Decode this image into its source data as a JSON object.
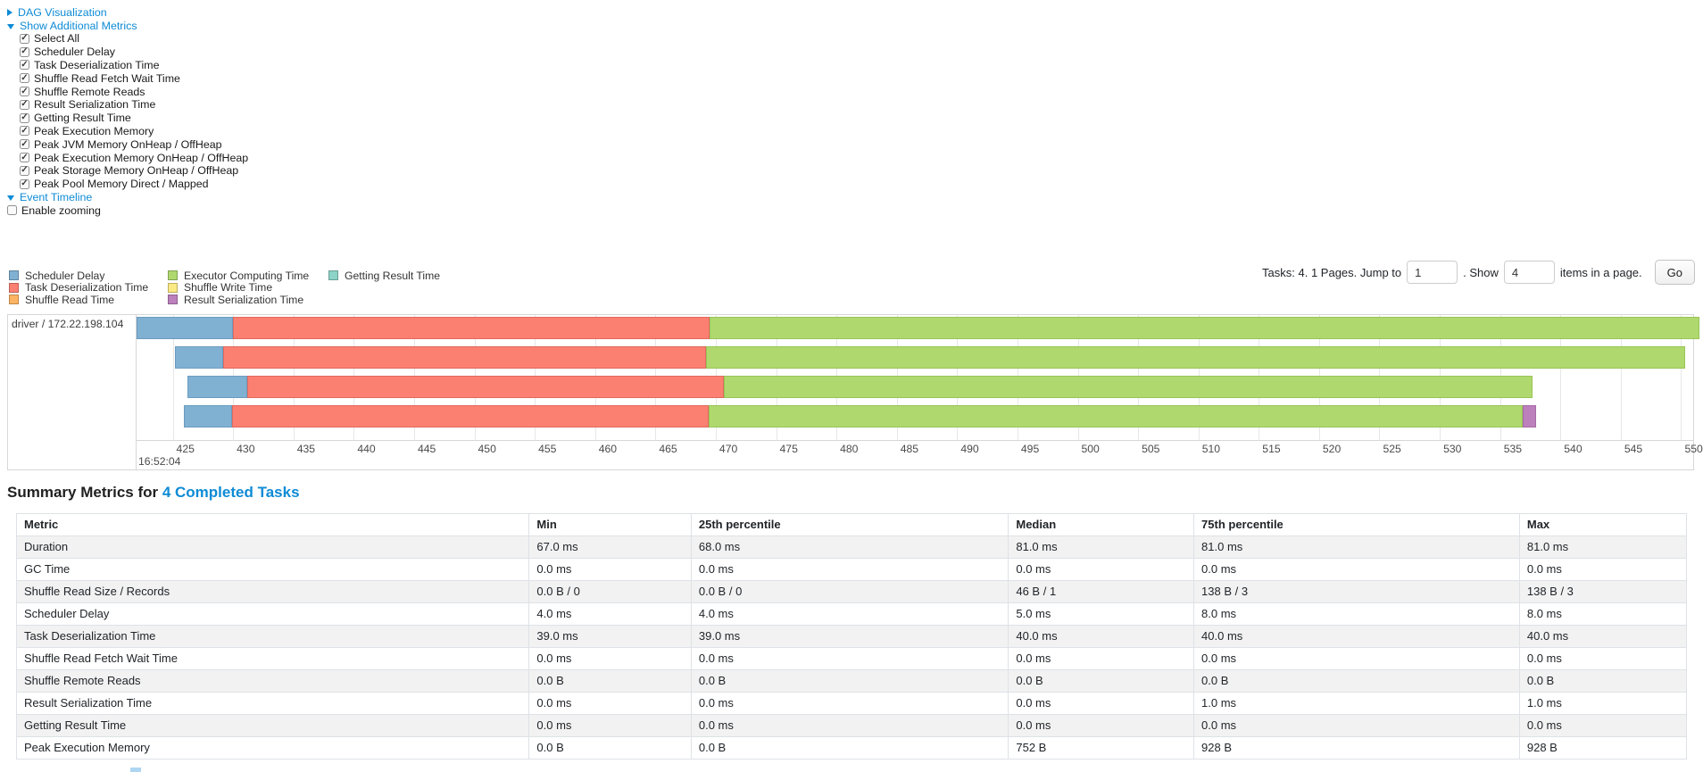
{
  "controls": {
    "dag_link": "DAG Visualization",
    "metrics_link": "Show Additional Metrics",
    "metric_checkboxes": [
      {
        "label": "Select All",
        "checked": true
      },
      {
        "label": "Scheduler Delay",
        "checked": true
      },
      {
        "label": "Task Deserialization Time",
        "checked": true
      },
      {
        "label": "Shuffle Read Fetch Wait Time",
        "checked": true
      },
      {
        "label": "Shuffle Remote Reads",
        "checked": true
      },
      {
        "label": "Result Serialization Time",
        "checked": true
      },
      {
        "label": "Getting Result Time",
        "checked": true
      },
      {
        "label": "Peak Execution Memory",
        "checked": true
      },
      {
        "label": "Peak JVM Memory OnHeap / OffHeap",
        "checked": true
      },
      {
        "label": "Peak Execution Memory OnHeap / OffHeap",
        "checked": true
      },
      {
        "label": "Peak Storage Memory OnHeap / OffHeap",
        "checked": true
      },
      {
        "label": "Peak Pool Memory Direct / Mapped",
        "checked": true
      }
    ],
    "event_timeline_link": "Event Timeline",
    "enable_zooming": {
      "label": "Enable zooming",
      "checked": false
    }
  },
  "legend": {
    "columns": [
      [
        {
          "label": "Scheduler Delay",
          "type": "scheduler_delay"
        },
        {
          "label": "Task Deserialization Time",
          "type": "deserialization"
        },
        {
          "label": "Shuffle Read Time",
          "type": "shuffle_read"
        }
      ],
      [
        {
          "label": "Executor Computing Time",
          "type": "computing"
        },
        {
          "label": "Shuffle Write Time",
          "type": "shuffle_write"
        },
        {
          "label": "Result Serialization Time",
          "type": "serialization"
        }
      ],
      [
        {
          "label": "Getting Result Time",
          "type": "getting_result"
        }
      ]
    ]
  },
  "pagination": {
    "prefix": "Tasks: 4. 1 Pages. Jump to",
    "jump_value": "1",
    "mid": ". Show",
    "show_value": "4",
    "suffix": "items in a page.",
    "go_label": "Go"
  },
  "timeline": {
    "group_label": "driver / 172.22.198.104",
    "axis": {
      "t0": 422,
      "t1": 551,
      "tick_start": 425,
      "tick_end": 550,
      "tick_step": 5,
      "major_label": "16:52:04"
    },
    "colors": {
      "scheduler_delay": {
        "fill": "#80B1D3",
        "border": "#6b9cc0"
      },
      "deserialization": {
        "fill": "#FB8072",
        "border": "#e06a5e"
      },
      "shuffle_read": {
        "fill": "#FDB462",
        "border": "#e09c4c"
      },
      "computing": {
        "fill": "#AFD96E",
        "border": "#98c455"
      },
      "shuffle_write": {
        "fill": "#FBE983",
        "border": "#ddcc55"
      },
      "serialization": {
        "fill": "#BC80BD",
        "border": "#a76aa8"
      },
      "getting_result": {
        "fill": "#8DD3C7",
        "border": "#76bdb1"
      }
    },
    "tasks": [
      {
        "segments": [
          {
            "type": "scheduler_delay",
            "start": 422.0,
            "end": 430.0
          },
          {
            "type": "deserialization",
            "start": 430.0,
            "end": 469.5
          },
          {
            "type": "computing",
            "start": 469.5,
            "end": 551.5
          }
        ]
      },
      {
        "segments": [
          {
            "type": "scheduler_delay",
            "start": 425.2,
            "end": 429.2
          },
          {
            "type": "deserialization",
            "start": 429.2,
            "end": 469.2
          },
          {
            "type": "computing",
            "start": 469.2,
            "end": 550.3
          }
        ]
      },
      {
        "segments": [
          {
            "type": "scheduler_delay",
            "start": 426.2,
            "end": 431.2
          },
          {
            "type": "deserialization",
            "start": 431.2,
            "end": 470.7
          },
          {
            "type": "computing",
            "start": 470.7,
            "end": 537.7
          }
        ]
      },
      {
        "segments": [
          {
            "type": "scheduler_delay",
            "start": 425.9,
            "end": 429.9
          },
          {
            "type": "deserialization",
            "start": 429.9,
            "end": 469.4
          },
          {
            "type": "computing",
            "start": 469.4,
            "end": 536.9
          },
          {
            "type": "serialization",
            "start": 536.9,
            "end": 538.0
          }
        ]
      }
    ]
  },
  "summary": {
    "title_prefix": "Summary Metrics for",
    "title_link": "4 Completed Tasks",
    "table": {
      "headers": [
        "Metric",
        "Min",
        "25th percentile",
        "Median",
        "75th percentile",
        "Max"
      ],
      "rows": [
        {
          "metric": "Duration",
          "values": [
            "67.0 ms",
            "68.0 ms",
            "81.0 ms",
            "81.0 ms",
            "81.0 ms"
          ]
        },
        {
          "metric": "GC Time",
          "values": [
            "0.0 ms",
            "0.0 ms",
            "0.0 ms",
            "0.0 ms",
            "0.0 ms"
          ]
        },
        {
          "metric": "Shuffle Read Size / Records",
          "values": [
            "0.0 B / 0",
            "0.0 B / 0",
            "46 B / 1",
            "138 B / 3",
            "138 B / 3"
          ]
        },
        {
          "metric": "Scheduler Delay",
          "values": [
            "4.0 ms",
            "4.0 ms",
            "5.0 ms",
            "8.0 ms",
            "8.0 ms"
          ]
        },
        {
          "metric": "Task Deserialization Time",
          "values": [
            "39.0 ms",
            "39.0 ms",
            "40.0 ms",
            "40.0 ms",
            "40.0 ms"
          ]
        },
        {
          "metric": "Shuffle Read Fetch Wait Time",
          "values": [
            "0.0 ms",
            "0.0 ms",
            "0.0 ms",
            "0.0 ms",
            "0.0 ms"
          ]
        },
        {
          "metric": "Shuffle Remote Reads",
          "values": [
            "0.0 B",
            "0.0 B",
            "0.0 B",
            "0.0 B",
            "0.0 B"
          ]
        },
        {
          "metric": "Result Serialization Time",
          "values": [
            "0.0 ms",
            "0.0 ms",
            "0.0 ms",
            "1.0 ms",
            "1.0 ms"
          ]
        },
        {
          "metric": "Getting Result Time",
          "values": [
            "0.0 ms",
            "0.0 ms",
            "0.0 ms",
            "0.0 ms",
            "0.0 ms"
          ]
        },
        {
          "metric": "Peak Execution Memory",
          "values": [
            "0.0 B",
            "0.0 B",
            "752 B",
            "928 B",
            "928 B"
          ]
        }
      ]
    }
  }
}
